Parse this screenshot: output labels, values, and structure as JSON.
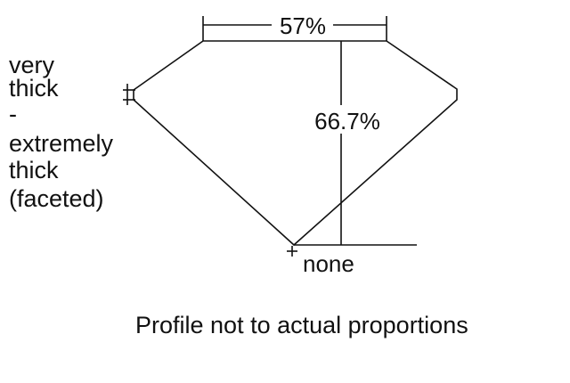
{
  "diagram": {
    "table_width": "57%",
    "total_depth": "66.7%",
    "girdle_label": [
      "very",
      "thick",
      "-",
      "extremely",
      "thick",
      "(faceted)"
    ],
    "culet_label": "none",
    "caption": "Profile not to actual proportions"
  }
}
